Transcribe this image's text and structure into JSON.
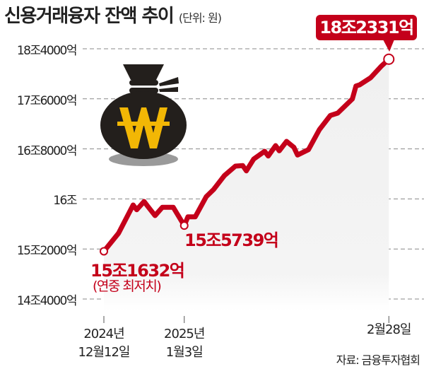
{
  "chart_data": {
    "type": "area",
    "title": "신용거래융자 잔액 추이",
    "unit": "(단위: 원)",
    "source": "자료: 금융투자협회",
    "ylim": [
      144000,
      184000
    ],
    "y_unit_note": "억",
    "yticks": [
      {
        "value": 184000,
        "label": "18조4000억"
      },
      {
        "value": 176000,
        "label": "17조6000억"
      },
      {
        "value": 168000,
        "label": "16조8000억"
      },
      {
        "value": 160000,
        "label": "16조"
      },
      {
        "value": 152000,
        "label": "15조2000억"
      },
      {
        "value": 144000,
        "label": "14조4000억"
      }
    ],
    "xticks": [
      {
        "date": "2024-12-12",
        "line1": "2024년",
        "line2": "12월12일"
      },
      {
        "date": "2025-01-03",
        "line1": "2025년",
        "line2": "1월3일"
      },
      {
        "date": "2025-02-28",
        "line1": "",
        "line2": "2월28일"
      }
    ],
    "grid": true,
    "colors": {
      "line": "#c4001a",
      "fill": "#f0f0f0",
      "grid": "#888888",
      "icon_bag": "#231f1c",
      "icon_won": "#f2b705"
    },
    "icon": "money-bag-won-icon",
    "series": [
      {
        "points": [
          [
            "2024-12-12",
            151632
          ],
          [
            "2024-12-16",
            154507
          ],
          [
            "2024-12-20",
            159027
          ],
          [
            "2024-12-21",
            158270
          ],
          [
            "2024-12-23",
            159592
          ],
          [
            "2024-12-24",
            158835
          ],
          [
            "2024-12-26",
            157332
          ],
          [
            "2024-12-28",
            158654
          ],
          [
            "2024-12-31",
            158654
          ],
          [
            "2025-01-03",
            155739
          ],
          [
            "2025-01-04",
            157140
          ],
          [
            "2025-01-06",
            157140
          ],
          [
            "2025-01-09",
            160349
          ],
          [
            "2025-01-11",
            161478
          ],
          [
            "2025-01-14",
            163740
          ],
          [
            "2025-01-17",
            165242
          ],
          [
            "2025-01-19",
            165320
          ],
          [
            "2025-01-20",
            164485
          ],
          [
            "2025-01-22",
            166372
          ],
          [
            "2025-01-25",
            167615
          ],
          [
            "2025-01-26",
            166858
          ],
          [
            "2025-01-28",
            168519
          ],
          [
            "2025-01-29",
            167694
          ],
          [
            "2025-01-31",
            169197
          ],
          [
            "2025-02-02",
            168259
          ],
          [
            "2025-02-03",
            167016
          ],
          [
            "2025-02-06",
            167875
          ],
          [
            "2025-02-09",
            171084
          ],
          [
            "2025-02-12",
            173344
          ],
          [
            "2025-02-14",
            173717
          ],
          [
            "2025-02-18",
            175977
          ],
          [
            "2025-02-19",
            178045
          ],
          [
            "2025-02-20",
            178237
          ],
          [
            "2025-02-23",
            179367
          ],
          [
            "2025-02-26",
            181254
          ],
          [
            "2025-02-28",
            182331
          ]
        ]
      }
    ],
    "annotations": {
      "start": {
        "date": "2024-12-12",
        "value": 151632,
        "label": "15조1632억",
        "note": "(연중 최저치)"
      },
      "mid": {
        "date": "2025-01-03",
        "value": 155739,
        "label": "15조5739억"
      },
      "end": {
        "date": "2025-02-28",
        "value": 182331,
        "label": "18조2331억"
      }
    }
  }
}
